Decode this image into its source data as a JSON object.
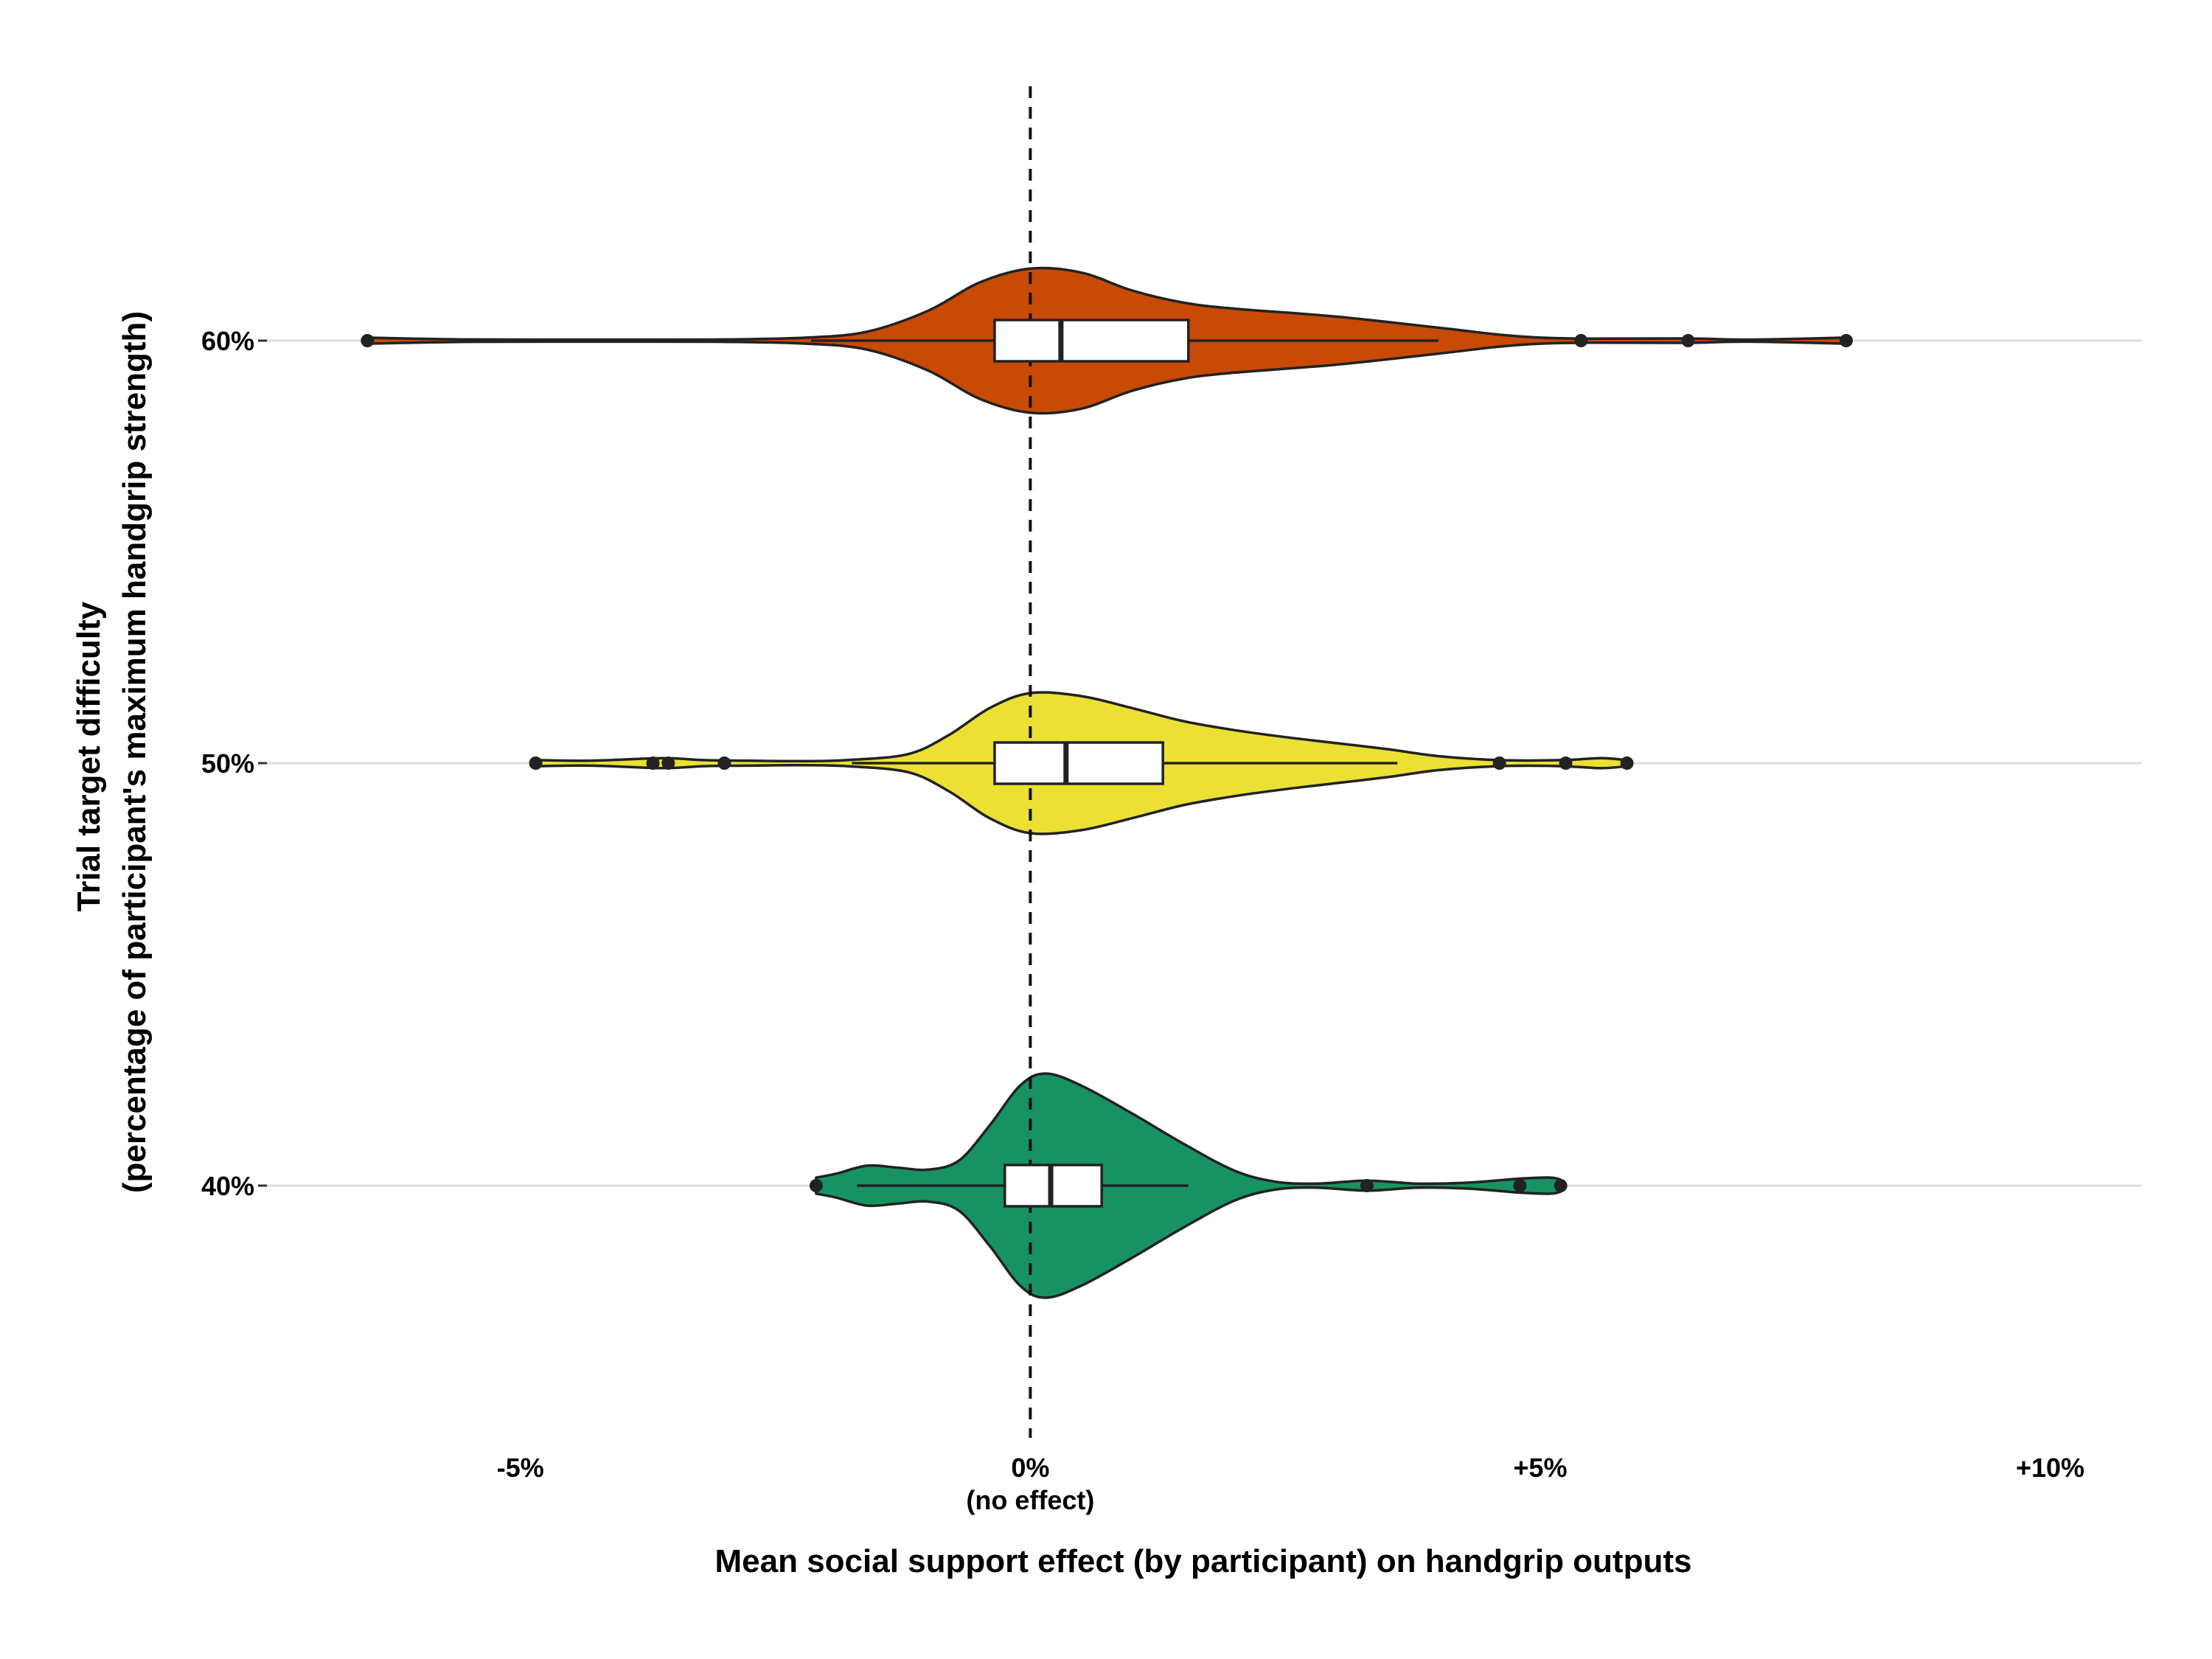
{
  "chart_data": {
    "type": "violin",
    "xlabel": "Mean social support effect (by participant) on handgrip outputs",
    "ylabel": [
      "Trial target difficulty",
      "(percentage of participant's maximum handgrip strength)"
    ],
    "xlim": [
      -7.5,
      10.9
    ],
    "x_ticks": [
      {
        "value": -5,
        "label": "-5%",
        "sublabel": ""
      },
      {
        "value": 0,
        "label": "0%",
        "sublabel": "(no effect)"
      },
      {
        "value": 5,
        "label": "+5%",
        "sublabel": ""
      },
      {
        "value": 10,
        "label": "+10%",
        "sublabel": ""
      }
    ],
    "reference_line": {
      "value": 0,
      "style": "dashed"
    },
    "grid": "horizontal",
    "series": [
      {
        "category": "60%",
        "color": "#C84A05",
        "min": -6.5,
        "max": 8.0,
        "whisker_low": -2.15,
        "whisker_high": 4.0,
        "q1": -0.35,
        "median": 0.3,
        "q3": 1.55,
        "outliers": [
          -6.5,
          5.4,
          6.45,
          8.0
        ],
        "density": [
          [
            -6.5,
            0.03
          ],
          [
            -5.5,
            0.012
          ],
          [
            -4.0,
            0.01
          ],
          [
            -3.0,
            0.012
          ],
          [
            -2.2,
            0.03
          ],
          [
            -1.6,
            0.09
          ],
          [
            -1.0,
            0.3
          ],
          [
            -0.5,
            0.58
          ],
          [
            0.0,
            0.72
          ],
          [
            0.5,
            0.68
          ],
          [
            1.0,
            0.5
          ],
          [
            1.5,
            0.38
          ],
          [
            2.0,
            0.32
          ],
          [
            3.0,
            0.24
          ],
          [
            4.0,
            0.13
          ],
          [
            4.6,
            0.06
          ],
          [
            5.0,
            0.03
          ],
          [
            5.5,
            0.02
          ],
          [
            6.4,
            0.022
          ],
          [
            7.0,
            0.01
          ],
          [
            7.6,
            0.02
          ],
          [
            8.0,
            0.03
          ]
        ]
      },
      {
        "category": "50%",
        "color": "#EBE033",
        "min": -4.85,
        "max": 5.85,
        "whisker_low": -1.75,
        "whisker_high": 3.6,
        "q1": -0.35,
        "median": 0.35,
        "q3": 1.3,
        "outliers": [
          -4.85,
          -3.7,
          -3.55,
          -3.0,
          4.6,
          5.25,
          5.85
        ],
        "density": [
          [
            -4.85,
            0.03
          ],
          [
            -4.3,
            0.025
          ],
          [
            -3.6,
            0.05
          ],
          [
            -3.2,
            0.03
          ],
          [
            -2.8,
            0.025
          ],
          [
            -2.3,
            0.02
          ],
          [
            -1.8,
            0.03
          ],
          [
            -1.2,
            0.09
          ],
          [
            -0.8,
            0.28
          ],
          [
            -0.4,
            0.55
          ],
          [
            0.0,
            0.7
          ],
          [
            0.5,
            0.67
          ],
          [
            1.0,
            0.55
          ],
          [
            1.5,
            0.42
          ],
          [
            2.0,
            0.33
          ],
          [
            2.5,
            0.26
          ],
          [
            3.0,
            0.2
          ],
          [
            3.5,
            0.14
          ],
          [
            4.0,
            0.07
          ],
          [
            4.6,
            0.03
          ],
          [
            5.2,
            0.03
          ],
          [
            5.6,
            0.05
          ],
          [
            5.85,
            0.03
          ]
        ]
      },
      {
        "category": "40%",
        "color": "#179262",
        "min": -2.1,
        "max": 5.2,
        "whisker_low": -1.7,
        "whisker_high": 1.55,
        "q1": -0.25,
        "median": 0.2,
        "q3": 0.7,
        "outliers": [
          -2.1,
          3.3,
          4.8,
          5.2
        ],
        "density": [
          [
            -2.1,
            0.08
          ],
          [
            -1.9,
            0.12
          ],
          [
            -1.6,
            0.2
          ],
          [
            -1.3,
            0.18
          ],
          [
            -1.0,
            0.16
          ],
          [
            -0.7,
            0.25
          ],
          [
            -0.4,
            0.6
          ],
          [
            -0.1,
            1.0
          ],
          [
            0.15,
            1.12
          ],
          [
            0.5,
            1.0
          ],
          [
            1.0,
            0.72
          ],
          [
            1.5,
            0.42
          ],
          [
            2.0,
            0.15
          ],
          [
            2.4,
            0.04
          ],
          [
            2.8,
            0.02
          ],
          [
            3.3,
            0.05
          ],
          [
            3.8,
            0.02
          ],
          [
            4.3,
            0.03
          ],
          [
            4.8,
            0.07
          ],
          [
            5.1,
            0.08
          ],
          [
            5.2,
            0.06
          ]
        ]
      }
    ]
  }
}
